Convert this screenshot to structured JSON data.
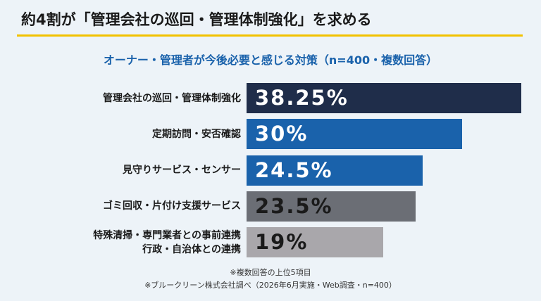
{
  "chart_data": {
    "type": "bar",
    "title": "約4割が「管理会社の巡回・管理体制強化」を求める",
    "subtitle": "オーナー・管理者が今後必要と感じる対策（n=400・複数回答）",
    "categories": [
      "管理会社の巡回・管理体制強化",
      "定期訪問・安否確認",
      "見守りサービス・センサー",
      "ゴミ回収・片付け支援サービス",
      "特殊清掃・専門業者との事前連携\n行政・自治体との連携"
    ],
    "values": [
      38.25,
      30,
      24.5,
      23.5,
      19
    ],
    "value_labels": [
      "38.25%",
      "30%",
      "24.5%",
      "23.5%",
      "19%"
    ],
    "colors": [
      "#1f2d4a",
      "#1a62ab",
      "#1a62ab",
      "#6b6e75",
      "#a9a7ab"
    ],
    "label_colors": [
      "#ffffff",
      "#ffffff",
      "#ffffff",
      "#1a1a1a",
      "#1a1a1a"
    ],
    "notes": [
      "※複数回答の上位5項目",
      "※ブルークリーン株式会社調べ（2026年6月実施・Web調査・n=400）"
    ]
  }
}
